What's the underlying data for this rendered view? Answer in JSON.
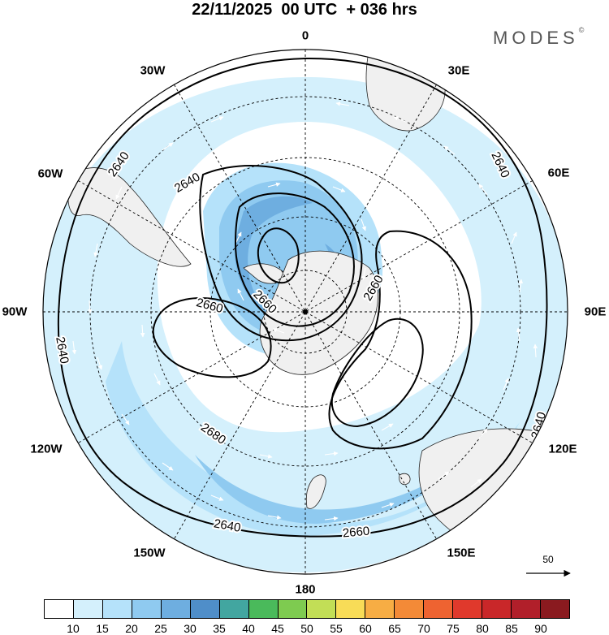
{
  "title": "22/11/2025  00 UTC  + 036 hrs",
  "brand": "MODES",
  "brand_mark": "©",
  "longitude_labels": {
    "lon_0": "0",
    "lon_30e": "30E",
    "lon_60e": "60E",
    "lon_90e": "90E",
    "lon_120e": "120E",
    "lon_150e": "150E",
    "lon_180": "180",
    "lon_150w": "150W",
    "lon_120w": "120W",
    "lon_90w": "90W",
    "lon_60w": "60W",
    "lon_30w": "30W"
  },
  "contour_labels": [
    "2640",
    "2640",
    "2640",
    "2640",
    "2640",
    "2640",
    "2660",
    "2660",
    "2660",
    "2660",
    "2680"
  ],
  "reference_vector": "50",
  "colorbar": {
    "ticks": [
      "10",
      "15",
      "20",
      "25",
      "30",
      "35",
      "40",
      "45",
      "50",
      "55",
      "60",
      "65",
      "70",
      "75",
      "80",
      "85",
      "90"
    ],
    "colors": [
      "#ffffff",
      "#d4f0fc",
      "#b5e2fa",
      "#8fcaf0",
      "#6eaee0",
      "#4f8ec9",
      "#42a6a0",
      "#4aba5b",
      "#7ecb50",
      "#c2de56",
      "#f8dc57",
      "#f7ad44",
      "#f38a37",
      "#ee6331",
      "#e0392c",
      "#c92729",
      "#b11f2a",
      "#8a1a1f"
    ]
  },
  "colors": {
    "land": "#f0f0f0",
    "wind_light": "#d4f0fc",
    "wind_mid": "#b5e2fa",
    "wind_strong": "#8fcaf0",
    "wind_strongest": "#6eaee0"
  }
}
